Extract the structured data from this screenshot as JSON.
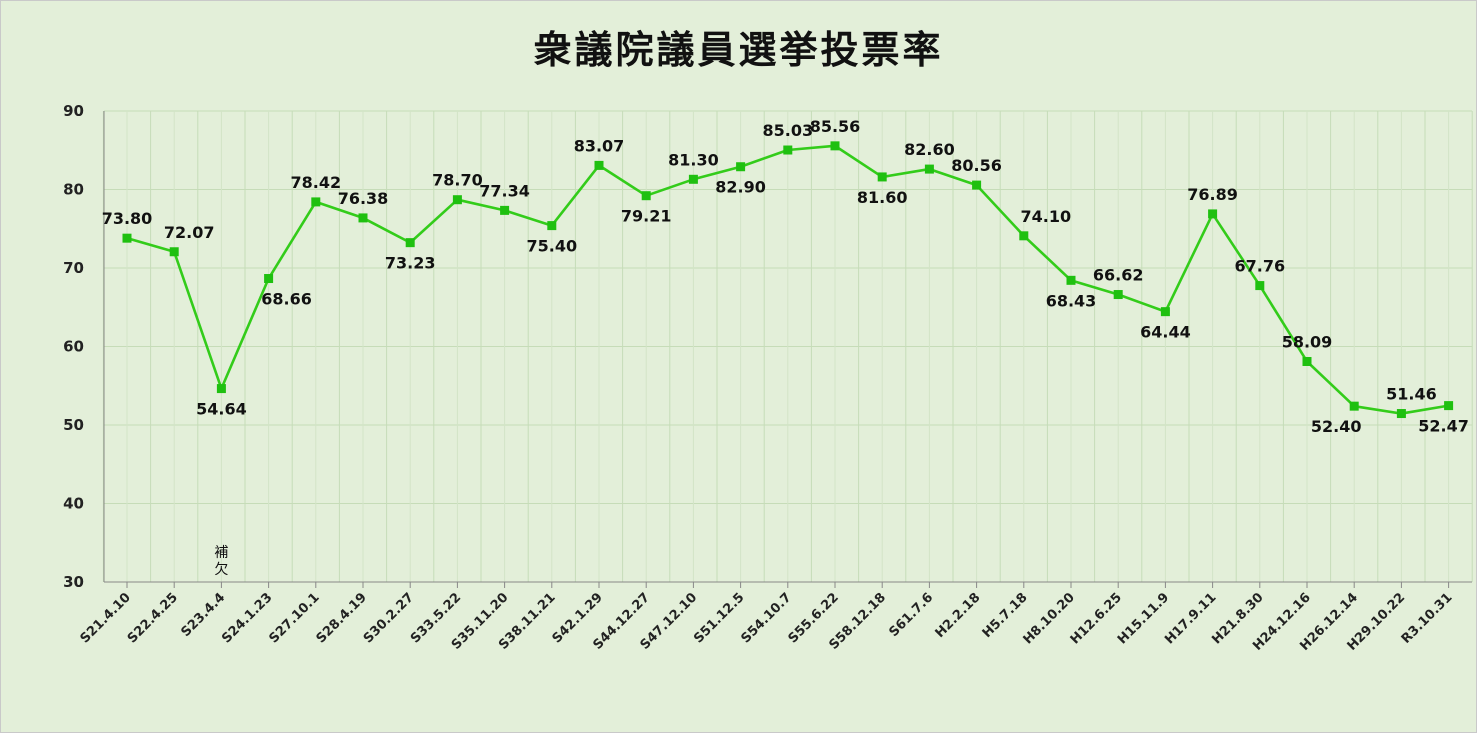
{
  "chart_data": {
    "type": "line",
    "title": "衆議院議員選挙投票率",
    "xlabel": "",
    "ylabel": "",
    "ylim": [
      30,
      90
    ],
    "yticks": [
      30,
      40,
      50,
      60,
      70,
      80,
      90
    ],
    "grid": true,
    "legend": "none",
    "colors": {
      "line": "#33cc1a",
      "marker": "#1fc010",
      "grid": "#c6dcb8",
      "axis": "#888888",
      "background": "#e3efd9"
    },
    "categories": [
      "S21.4.10",
      "S22.4.25",
      "S23.4.4",
      "S24.1.23",
      "S27.10.1",
      "S28.4.19",
      "S30.2.27",
      "S33.5.22",
      "S35.11.20",
      "S38.11.21",
      "S42.1.29",
      "S44.12.27",
      "S47.12.10",
      "S51.12.5",
      "S54.10.7",
      "S55.6.22",
      "S58.12.18",
      "S61.7.6",
      "H2.2.18",
      "H5.7.18",
      "H8.10.20",
      "H12.6.25",
      "H15.11.9",
      "H17.9.11",
      "H21.8.30",
      "H24.12.16",
      "H26.12.14",
      "H29.10.22",
      "R3.10.31"
    ],
    "series": [
      {
        "values": [
          73.8,
          72.07,
          54.64,
          68.66,
          78.42,
          76.38,
          73.23,
          78.7,
          77.34,
          75.4,
          83.07,
          79.21,
          81.3,
          82.9,
          85.03,
          85.56,
          81.6,
          82.6,
          80.56,
          74.1,
          68.43,
          66.62,
          64.44,
          76.89,
          67.76,
          58.09,
          52.4,
          51.46,
          52.47
        ],
        "labels": [
          "73.80",
          "72.07",
          "54.64",
          "68.66",
          "78.42",
          "76.38",
          "73.23",
          "78.70",
          "77.34",
          "75.40",
          "83.07",
          "79.21",
          "81.30",
          "82.90",
          "85.03",
          "85.56",
          "81.60",
          "82.60",
          "80.56",
          "74.10",
          "68.43",
          "66.62",
          "64.44",
          "76.89",
          "67.76",
          "58.09",
          "52.40",
          "51.46",
          "52.47"
        ]
      }
    ],
    "annotations": [
      {
        "category": "S23.4.4",
        "lines": [
          "補",
          "欠"
        ]
      }
    ]
  }
}
